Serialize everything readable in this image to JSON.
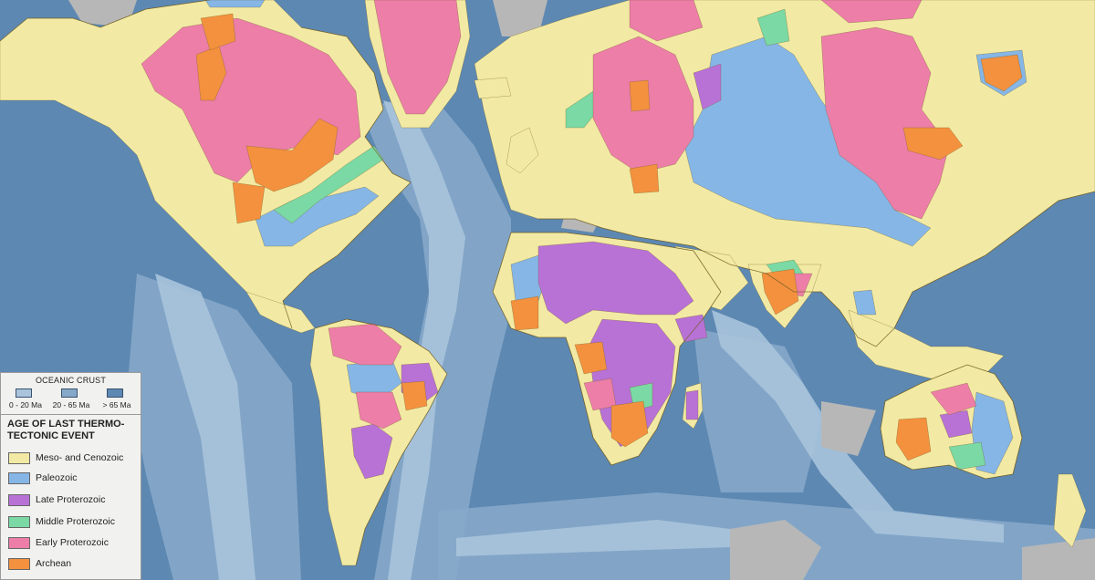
{
  "colors": {
    "ocean_young": "#a9c4dc",
    "ocean_mid": "#86a9c9",
    "ocean_old": "#5d88b2",
    "ice": "#b7b7b7",
    "mesozoic_cenozoic": "#f2eaa4",
    "paleozoic": "#86b6e6",
    "late_proterozoic": "#b872d6",
    "middle_proterozoic": "#7ad9a4",
    "early_proterozoic": "#ec7ea8",
    "archean": "#f3913f",
    "coastline": "#6f5a1f"
  },
  "legend": {
    "oceanic_title": "OCEANIC CRUST",
    "oceanic": [
      {
        "label": "0 - 20 Ma",
        "color": "#a9c4dc"
      },
      {
        "label": "20 - 65 Ma",
        "color": "#86a9c9"
      },
      {
        "label": "> 65 Ma",
        "color": "#5d88b2"
      }
    ],
    "age_title_line1": "AGE OF LAST THERMO-",
    "age_title_line2": "TECTONIC EVENT",
    "items": [
      {
        "label": "Meso- and Cenozoic",
        "color": "#f2eaa4"
      },
      {
        "label": "Paleozoic",
        "color": "#86b6e6"
      },
      {
        "label": "Late Proterozoic",
        "color": "#b872d6"
      },
      {
        "label": "Middle Proterozoic",
        "color": "#7ad9a4"
      },
      {
        "label": "Early Proterozoic",
        "color": "#ec7ea8"
      },
      {
        "label": "Archean",
        "color": "#f3913f"
      }
    ]
  }
}
